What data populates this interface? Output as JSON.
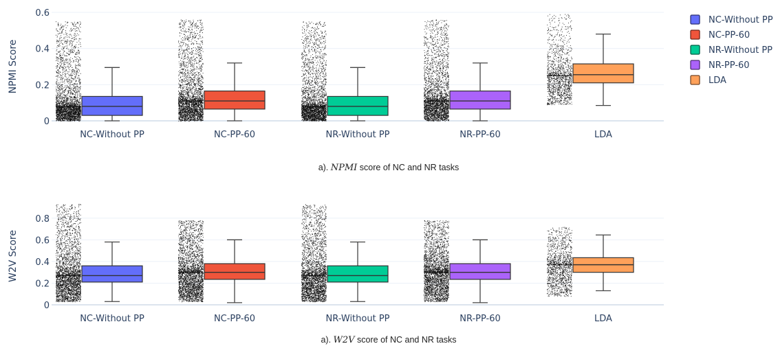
{
  "legend": [
    {
      "name": "NC-Without PP",
      "color": "#636efa"
    },
    {
      "name": "NC-PP-60",
      "color": "#ef553b"
    },
    {
      "name": "NR-Without PP",
      "color": "#00cc96"
    },
    {
      "name": "NR-PP-60",
      "color": "#ab63fa"
    },
    {
      "name": "LDA",
      "color": "#ffa15a"
    }
  ],
  "captions": [
    {
      "prefix": "a). ",
      "metric": "NPMI",
      "suffix": " score of NC and NR tasks"
    },
    {
      "prefix": "a). ",
      "metric": "W2V",
      "suffix": " score of NC and NR tasks"
    }
  ],
  "chart_data": [
    {
      "type": "box",
      "ylabel": "NPMI Score",
      "xlabel": "",
      "ylim": [
        0,
        0.6
      ],
      "yticks": [
        0,
        0.2,
        0.4,
        0.6
      ],
      "ytick_labels": [
        "0",
        "0.2",
        "0.4",
        "0.6"
      ],
      "grid": true,
      "legend_position": "right",
      "categories": [
        "NC-Without PP",
        "NC-PP-60",
        "NR-Without PP",
        "NR-PP-60",
        "LDA"
      ],
      "series": [
        {
          "name": "NC-Without PP",
          "color": "#636efa",
          "min": 0.0,
          "q1": 0.03,
          "median": 0.08,
          "q3": 0.135,
          "max": 0.295,
          "points_min": 0.0,
          "points_max": 0.55,
          "points_median": 0.08
        },
        {
          "name": "NC-PP-60",
          "color": "#ef553b",
          "min": 0.0,
          "q1": 0.065,
          "median": 0.11,
          "q3": 0.165,
          "max": 0.32,
          "points_min": 0.0,
          "points_max": 0.56,
          "points_median": 0.11
        },
        {
          "name": "NR-Without PP",
          "color": "#00cc96",
          "min": 0.0,
          "q1": 0.03,
          "median": 0.08,
          "q3": 0.135,
          "max": 0.295,
          "points_min": 0.0,
          "points_max": 0.55,
          "points_median": 0.08
        },
        {
          "name": "NR-PP-60",
          "color": "#ab63fa",
          "min": 0.0,
          "q1": 0.065,
          "median": 0.11,
          "q3": 0.165,
          "max": 0.32,
          "points_min": 0.0,
          "points_max": 0.56,
          "points_median": 0.11
        },
        {
          "name": "LDA",
          "color": "#ffa15a",
          "min": 0.085,
          "q1": 0.21,
          "median": 0.255,
          "q3": 0.315,
          "max": 0.48,
          "points_min": 0.09,
          "points_max": 0.59,
          "points_median": 0.25
        }
      ]
    },
    {
      "type": "box",
      "ylabel": "W2V Score",
      "xlabel": "",
      "ylim": [
        0,
        0.9
      ],
      "yticks": [
        0,
        0.2,
        0.4,
        0.6,
        0.8
      ],
      "ytick_labels": [
        "0",
        "0.2",
        "0.4",
        "0.6",
        "0.8"
      ],
      "grid": true,
      "legend_position": "right",
      "categories": [
        "NC-Without PP",
        "NC-PP-60",
        "NR-Without PP",
        "NR-PP-60",
        "LDA"
      ],
      "series": [
        {
          "name": "NC-Without PP",
          "color": "#636efa",
          "min": 0.03,
          "q1": 0.21,
          "median": 0.27,
          "q3": 0.36,
          "max": 0.58,
          "points_min": 0.03,
          "points_max": 0.93,
          "points_median": 0.27
        },
        {
          "name": "NC-PP-60",
          "color": "#ef553b",
          "min": 0.02,
          "q1": 0.235,
          "median": 0.3,
          "q3": 0.38,
          "max": 0.6,
          "points_min": 0.03,
          "points_max": 0.78,
          "points_median": 0.3
        },
        {
          "name": "NR-Without PP",
          "color": "#00cc96",
          "min": 0.03,
          "q1": 0.21,
          "median": 0.27,
          "q3": 0.36,
          "max": 0.58,
          "points_min": 0.03,
          "points_max": 0.93,
          "points_median": 0.27
        },
        {
          "name": "NR-PP-60",
          "color": "#ab63fa",
          "min": 0.02,
          "q1": 0.235,
          "median": 0.3,
          "q3": 0.38,
          "max": 0.6,
          "points_min": 0.03,
          "points_max": 0.78,
          "points_median": 0.3
        },
        {
          "name": "LDA",
          "color": "#ffa15a",
          "min": 0.13,
          "q1": 0.3,
          "median": 0.37,
          "q3": 0.435,
          "max": 0.645,
          "points_min": 0.08,
          "points_max": 0.72,
          "points_median": 0.37
        }
      ]
    }
  ]
}
